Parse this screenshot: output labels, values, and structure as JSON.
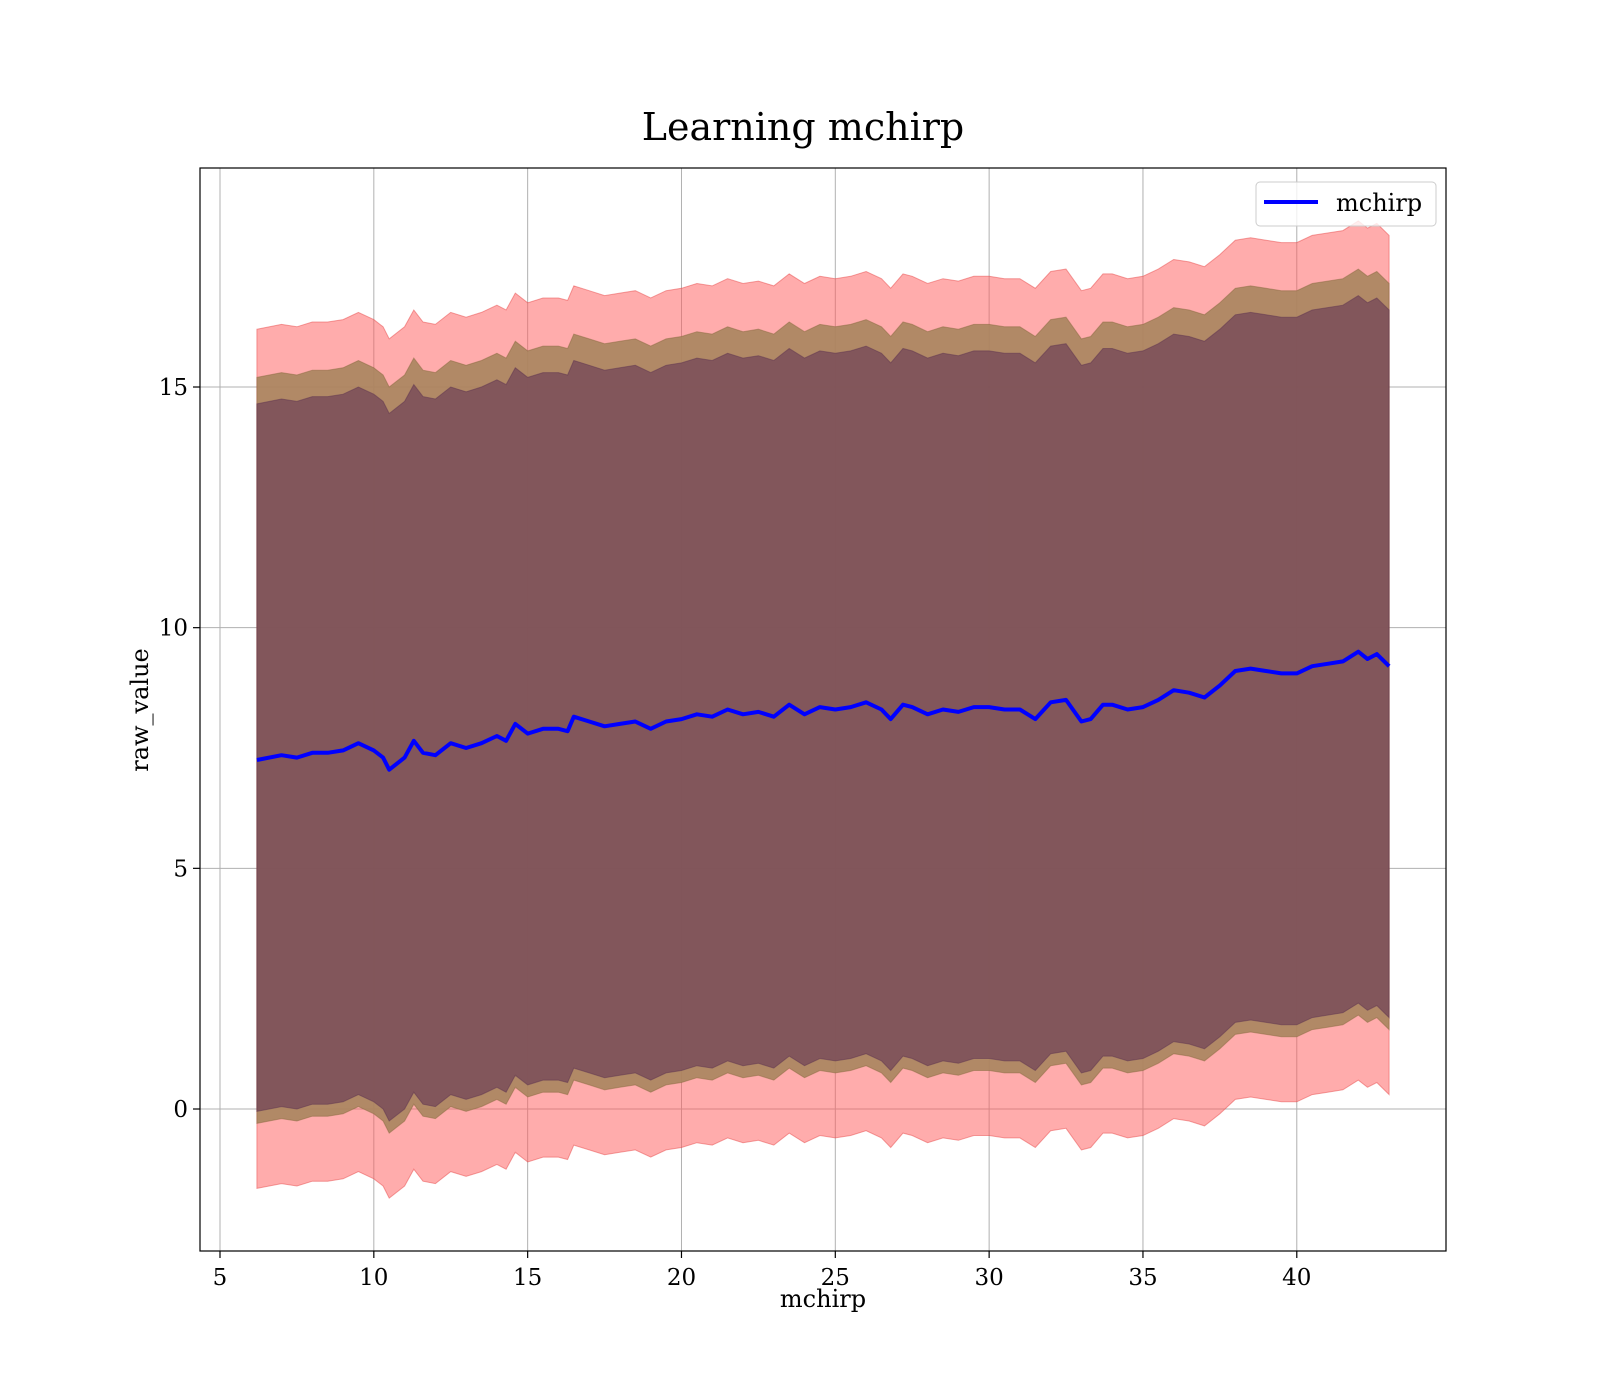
{
  "chart_data": {
    "type": "line",
    "title": "Learning mchirp",
    "xlabel": "mchirp",
    "ylabel": "raw_value",
    "xlim": [
      4.35,
      44.85
    ],
    "ylim": [
      -2.95,
      19.55
    ],
    "xticks": [
      5,
      10,
      15,
      20,
      25,
      30,
      35,
      40
    ],
    "yticks": [
      0,
      5,
      10,
      15
    ],
    "grid": true,
    "legend": {
      "position": "top-right",
      "entries": [
        "mchirp"
      ]
    },
    "colors": {
      "line": "#0000ff",
      "band_outer": "#ff5a5a",
      "band_mid": "#a9855e",
      "band_inner": "#704358"
    },
    "series": [
      {
        "name": "mchirp",
        "x": [
          6.2,
          7.0,
          7.5,
          8.0,
          8.5,
          9.0,
          9.5,
          10.0,
          10.3,
          10.5,
          11.0,
          11.3,
          11.6,
          12.0,
          12.5,
          13.0,
          13.5,
          14.0,
          14.3,
          14.6,
          15.0,
          15.5,
          16.0,
          16.3,
          16.5,
          17.0,
          17.5,
          18.0,
          18.5,
          19.0,
          19.5,
          20.0,
          20.5,
          21.0,
          21.5,
          22.0,
          22.5,
          23.0,
          23.5,
          24.0,
          24.5,
          25.0,
          25.5,
          26.0,
          26.5,
          26.8,
          27.2,
          27.5,
          28.0,
          28.5,
          29.0,
          29.5,
          30.0,
          30.5,
          31.0,
          31.5,
          32.0,
          32.5,
          33.0,
          33.3,
          33.7,
          34.0,
          34.5,
          35.0,
          35.5,
          36.0,
          36.5,
          37.0,
          37.5,
          38.0,
          38.5,
          39.0,
          39.5,
          40.0,
          40.5,
          41.0,
          41.5,
          42.0,
          42.3,
          42.6,
          43.0
        ],
        "values": [
          7.25,
          7.35,
          7.3,
          7.4,
          7.4,
          7.45,
          7.6,
          7.45,
          7.3,
          7.05,
          7.3,
          7.65,
          7.4,
          7.35,
          7.6,
          7.5,
          7.6,
          7.75,
          7.65,
          8.0,
          7.8,
          7.9,
          7.9,
          7.85,
          8.15,
          8.05,
          7.95,
          8.0,
          8.05,
          7.9,
          8.05,
          8.1,
          8.2,
          8.15,
          8.3,
          8.2,
          8.25,
          8.15,
          8.4,
          8.2,
          8.35,
          8.3,
          8.35,
          8.45,
          8.3,
          8.1,
          8.4,
          8.35,
          8.2,
          8.3,
          8.25,
          8.35,
          8.35,
          8.3,
          8.3,
          8.1,
          8.45,
          8.5,
          8.05,
          8.1,
          8.4,
          8.4,
          8.3,
          8.35,
          8.5,
          8.7,
          8.65,
          8.55,
          8.8,
          9.1,
          9.15,
          9.1,
          9.05,
          9.05,
          9.2,
          9.25,
          9.3,
          9.5,
          9.35,
          9.45,
          9.2
        ]
      }
    ],
    "bands": [
      {
        "name": "outer",
        "lower_offset": -8.9,
        "upper_offset": 8.95
      },
      {
        "name": "middle",
        "lower_offset": -7.55,
        "upper_offset": 7.95
      },
      {
        "name": "inner",
        "lower_offset": -7.3,
        "upper_offset": 7.4
      }
    ]
  }
}
